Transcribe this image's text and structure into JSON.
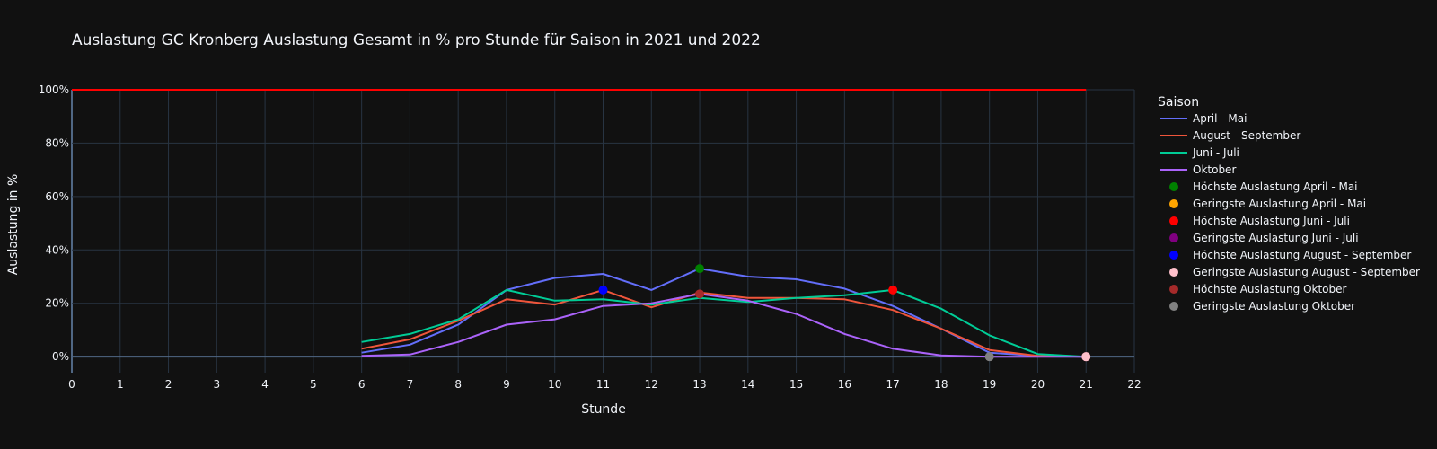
{
  "chart_data": {
    "type": "line",
    "title": "Auslastung GC Kronberg Auslastung Gesamt in % pro Stunde für Saison in 2021 und 2022",
    "xlabel": "Stunde",
    "ylabel": "Auslastung in %",
    "xlim": [
      0,
      22
    ],
    "ylim": [
      -6,
      100
    ],
    "x_ticks": [
      0,
      1,
      2,
      3,
      4,
      5,
      6,
      7,
      8,
      9,
      10,
      11,
      12,
      13,
      14,
      15,
      16,
      17,
      18,
      19,
      20,
      21,
      22
    ],
    "y_ticks": [
      0,
      20,
      40,
      60,
      80,
      100
    ],
    "y_tick_labels": [
      "0%",
      "20%",
      "40%",
      "60%",
      "80%",
      "100%"
    ],
    "grid": true,
    "legend_title": "Saison",
    "legend_position": "right",
    "reference_line": {
      "y": 100,
      "x": [
        0,
        21
      ],
      "color": "#ff0000"
    },
    "series": [
      {
        "name": "April - Mai",
        "color": "#636efa",
        "x": [
          6,
          7,
          8,
          9,
          10,
          11,
          12,
          13,
          14,
          15,
          16,
          17,
          18,
          19,
          20,
          21
        ],
        "values": [
          1.5,
          4.5,
          12,
          25,
          29.5,
          31,
          25,
          33,
          30,
          29,
          25.5,
          19,
          10.5,
          1.5,
          0.3,
          0
        ]
      },
      {
        "name": "August - September",
        "color": "#ef553b",
        "x": [
          6,
          7,
          8,
          9,
          10,
          11,
          12,
          13,
          14,
          15,
          16,
          17,
          18,
          19,
          20,
          21
        ],
        "values": [
          3,
          6.5,
          13.5,
          21.5,
          19.5,
          25,
          18.5,
          24,
          22,
          22,
          21.5,
          17.5,
          10.5,
          2.5,
          0.3,
          0
        ]
      },
      {
        "name": "Juni - Juli",
        "color": "#00cc96",
        "x": [
          6,
          7,
          8,
          9,
          10,
          11,
          12,
          13,
          14,
          15,
          16,
          17,
          18,
          19,
          20,
          21
        ],
        "values": [
          5.5,
          8.5,
          14,
          25,
          21,
          21.5,
          19.5,
          22,
          20.5,
          22,
          23,
          25,
          18,
          8,
          1,
          0
        ]
      },
      {
        "name": "Oktober",
        "color": "#ab63fa",
        "x": [
          6,
          7,
          8,
          9,
          10,
          11,
          12,
          13,
          14,
          15,
          16,
          17,
          18,
          19,
          20,
          21
        ],
        "values": [
          0.3,
          0.8,
          5.5,
          12,
          14,
          19,
          20,
          23.5,
          21,
          16,
          8.5,
          3,
          0.5,
          0,
          0,
          0
        ]
      }
    ],
    "markers": [
      {
        "name": "Höchste Auslastung April - Mai",
        "color": "#008000",
        "x": 13,
        "y": 33
      },
      {
        "name": "Geringste Auslastung April - Mai",
        "color": "#ffa500",
        "x": 21,
        "y": 0
      },
      {
        "name": "Höchste Auslastung Juni - Juli",
        "color": "#ff0000",
        "x": 17,
        "y": 25
      },
      {
        "name": "Geringste Auslastung Juni - Juli",
        "color": "#800080",
        "x": 21,
        "y": 0
      },
      {
        "name": "Höchste Auslastung August - September",
        "color": "#0000ff",
        "x": 11,
        "y": 25
      },
      {
        "name": "Geringste Auslastung August - September",
        "color": "#ffc0cb",
        "x": 21,
        "y": 0
      },
      {
        "name": "Höchste Auslastung Oktober",
        "color": "#a52a2a",
        "x": 13,
        "y": 23.5
      },
      {
        "name": "Geringste Auslastung Oktober",
        "color": "#808080",
        "x": 19,
        "y": 0
      }
    ]
  }
}
